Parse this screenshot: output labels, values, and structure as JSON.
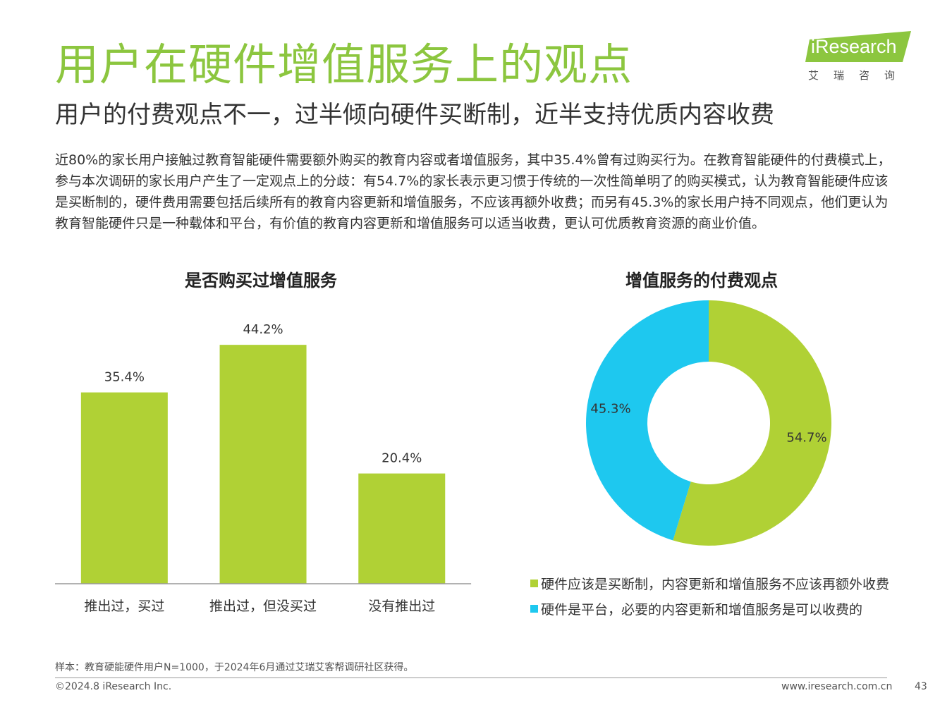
{
  "brand": {
    "name": "iResearch",
    "name_cn": "艾瑞咨询",
    "color": "#8cc63f"
  },
  "page": {
    "title": "用户在硬件增值服务上的观点",
    "subtitle": "用户的付费观点不一，过半倾向硬件买断制，近半支持优质内容收费",
    "paragraph": "近80%的家长用户接触过教育智能硬件需要额外购买的教育内容或者增值服务，其中35.4%曾有过购买行为。在教育智能硬件的付费模式上，参与本次调研的家长用户产生了一定观点上的分歧：有54.7%的家长表示更习惯于传统的一次性简单明了的购买模式，认为教育智能硬件应该是买断制的，硬件费用需要包括后续所有的教育内容更新和增值服务，不应该再额外收费；而另有45.3%的家长用户持不同观点，他们更认为教育智能硬件只是一种载体和平台，有价值的教育内容更新和增值服务可以适当收费，更认可优质教育资源的商业价值。"
  },
  "chart_data": [
    {
      "type": "bar",
      "title": "是否购买过增值服务",
      "categories": [
        "推出过，买过",
        "推出过，但没买过",
        "没有推出过"
      ],
      "values": [
        35.4,
        44.2,
        20.4
      ],
      "labels": [
        "35.4%",
        "44.2%",
        "20.4%"
      ],
      "ylim": [
        0,
        60
      ],
      "color": "#b0d135",
      "grid": false
    },
    {
      "type": "pie",
      "variant": "donut",
      "title": "增值服务的付费观点",
      "slices": [
        {
          "name": "硬件应该是买断制，内容更新和增值服务不应该再额外收费",
          "value": 54.7,
          "label": "54.7%",
          "color": "#b0d135"
        },
        {
          "name": "硬件是平台，必要的内容更新和增值服务是可以收费的",
          "value": 45.3,
          "label": "45.3%",
          "color": "#1ec8ef"
        }
      ],
      "legend_position": "bottom"
    }
  ],
  "footer": {
    "note": "样本：教育硬能硬件用户N=1000，于2024年6月通过艾瑞艾客帮调研社区获得。",
    "copyright": "©2024.8 iResearch Inc.",
    "website": "www.iresearch.com.cn",
    "page_number": "43"
  }
}
